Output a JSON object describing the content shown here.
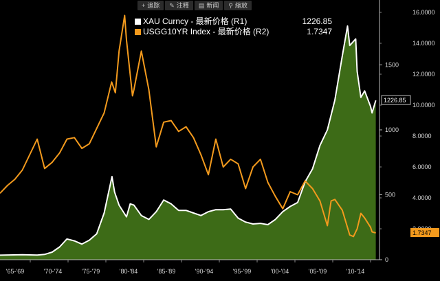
{
  "toolbar": {
    "items": [
      {
        "label": "追踪",
        "icon": "plus-icon",
        "glyph": "+"
      },
      {
        "label": "注释",
        "icon": "pencil-icon",
        "glyph": "✎"
      },
      {
        "label": "新闻",
        "icon": "news-icon",
        "glyph": "▤"
      },
      {
        "label": "縮放",
        "icon": "zoom-icon",
        "glyph": "⚲"
      }
    ]
  },
  "chart_data": {
    "type": "area",
    "title": "",
    "x_categories": [
      "'65-'69",
      "'70-'74",
      "'75-'79",
      "'80-'84",
      "'85-'89",
      "'90-'94",
      "'95-'99",
      "'00-'04",
      "'05-'09",
      "'10-'14"
    ],
    "y_left": {
      "ticks": [
        0,
        500,
        1000,
        1500
      ],
      "range": [
        0,
        2000
      ]
    },
    "y_right": {
      "ticks": [
        "2.0000",
        "4.0000",
        "6.0000",
        "8.0000",
        "10.0000",
        "12.0000",
        "14.0000",
        "16.0000"
      ],
      "range": [
        0,
        16.8
      ]
    },
    "series": [
      {
        "name": "XAU Curncy - 最新价格 (R1)",
        "last_value": "1226.85",
        "last_label": "1226.85",
        "axis": "left",
        "color": "#ffffff",
        "fill": "#3d6b17",
        "points": [
          [
            1965,
            35
          ],
          [
            1968,
            38
          ],
          [
            1970,
            36
          ],
          [
            1971,
            41
          ],
          [
            1972,
            58
          ],
          [
            1973,
            98
          ],
          [
            1974,
            160
          ],
          [
            1975,
            145
          ],
          [
            1976,
            120
          ],
          [
            1977,
            150
          ],
          [
            1978,
            200
          ],
          [
            1979,
            360
          ],
          [
            1980.05,
            640
          ],
          [
            1980.4,
            520
          ],
          [
            1981,
            420
          ],
          [
            1982,
            330
          ],
          [
            1982.5,
            430
          ],
          [
            1983,
            420
          ],
          [
            1984,
            340
          ],
          [
            1985,
            310
          ],
          [
            1986,
            370
          ],
          [
            1987,
            460
          ],
          [
            1988,
            430
          ],
          [
            1989,
            380
          ],
          [
            1990,
            380
          ],
          [
            1991,
            360
          ],
          [
            1992,
            340
          ],
          [
            1993,
            370
          ],
          [
            1994,
            385
          ],
          [
            1995,
            385
          ],
          [
            1996,
            390
          ],
          [
            1997,
            320
          ],
          [
            1998,
            290
          ],
          [
            1999,
            275
          ],
          [
            2000,
            280
          ],
          [
            2001,
            270
          ],
          [
            2002,
            310
          ],
          [
            2003,
            370
          ],
          [
            2004,
            410
          ],
          [
            2005,
            440
          ],
          [
            2006,
            600
          ],
          [
            2007,
            700
          ],
          [
            2008,
            880
          ],
          [
            2009,
            1000
          ],
          [
            2010,
            1230
          ],
          [
            2011,
            1570
          ],
          [
            2011.7,
            1800
          ],
          [
            2012,
            1650
          ],
          [
            2012.8,
            1700
          ],
          [
            2013,
            1450
          ],
          [
            2013.5,
            1250
          ],
          [
            2014,
            1300
          ],
          [
            2014.8,
            1180
          ],
          [
            2015,
            1130
          ],
          [
            2015.5,
            1226.85
          ]
        ]
      },
      {
        "name": "USGG10YR Index - 最新价格 (R2)",
        "last_value": "1.7347",
        "last_label": "1.7347",
        "axis": "right",
        "color": "#f39a1d",
        "points": [
          [
            1965,
            4.3
          ],
          [
            1966,
            4.8
          ],
          [
            1967,
            5.2
          ],
          [
            1968,
            5.8
          ],
          [
            1969,
            6.8
          ],
          [
            1970,
            7.8
          ],
          [
            1971,
            5.9
          ],
          [
            1972,
            6.3
          ],
          [
            1973,
            6.9
          ],
          [
            1974,
            7.8
          ],
          [
            1975,
            7.9
          ],
          [
            1976,
            7.2
          ],
          [
            1977,
            7.5
          ],
          [
            1978,
            8.5
          ],
          [
            1979,
            9.5
          ],
          [
            1980,
            11.5
          ],
          [
            1980.5,
            10.8
          ],
          [
            1981,
            13.5
          ],
          [
            1981.75,
            15.8
          ],
          [
            1982,
            14.2
          ],
          [
            1982.8,
            10.6
          ],
          [
            1983,
            11.0
          ],
          [
            1984,
            13.5
          ],
          [
            1985,
            11.0
          ],
          [
            1986,
            7.3
          ],
          [
            1987,
            8.9
          ],
          [
            1988,
            9.0
          ],
          [
            1989,
            8.3
          ],
          [
            1990,
            8.6
          ],
          [
            1991,
            7.9
          ],
          [
            1992,
            6.8
          ],
          [
            1993,
            5.5
          ],
          [
            1994,
            7.8
          ],
          [
            1995,
            6.0
          ],
          [
            1996,
            6.5
          ],
          [
            1997,
            6.2
          ],
          [
            1998,
            4.6
          ],
          [
            1999,
            6.0
          ],
          [
            2000,
            6.5
          ],
          [
            2001,
            5.0
          ],
          [
            2002,
            4.1
          ],
          [
            2003,
            3.3
          ],
          [
            2004,
            4.4
          ],
          [
            2005,
            4.2
          ],
          [
            2006,
            5.1
          ],
          [
            2007,
            4.6
          ],
          [
            2008,
            3.8
          ],
          [
            2009,
            2.2
          ],
          [
            2009.5,
            3.8
          ],
          [
            2010,
            3.9
          ],
          [
            2011,
            3.2
          ],
          [
            2012,
            1.6
          ],
          [
            2012.5,
            1.5
          ],
          [
            2013,
            2.0
          ],
          [
            2013.5,
            3.0
          ],
          [
            2014,
            2.7
          ],
          [
            2014.8,
            2.1
          ],
          [
            2015,
            1.8
          ],
          [
            2015.5,
            1.7347
          ]
        ]
      }
    ],
    "legend_placement": "top-center",
    "grid": false
  }
}
